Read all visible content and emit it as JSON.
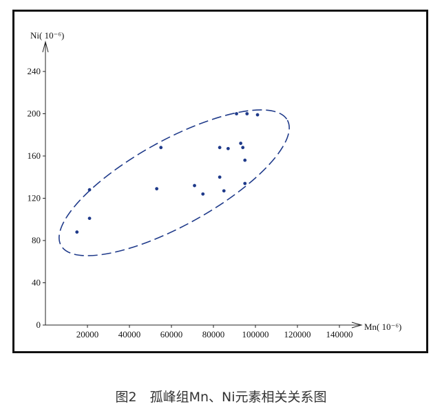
{
  "caption": "图2　孤峰组Mn、Ni元素相关关系图",
  "chart_data": {
    "type": "scatter",
    "title": "",
    "xlabel": "Mn( 10⁻⁶)",
    "ylabel": "Ni( 10⁻⁶)",
    "xlim": [
      0,
      150000
    ],
    "ylim": [
      0,
      260
    ],
    "x_ticks": [
      20000,
      40000,
      60000,
      80000,
      100000,
      120000,
      140000
    ],
    "y_ticks": [
      0,
      40,
      80,
      120,
      160,
      200,
      240
    ],
    "grid": false,
    "point_color": "#1f3a8a",
    "ellipse_color": "#1f3a8a",
    "points": [
      {
        "x": 15000,
        "y": 88
      },
      {
        "x": 21000,
        "y": 101
      },
      {
        "x": 21000,
        "y": 128
      },
      {
        "x": 53000,
        "y": 129
      },
      {
        "x": 55000,
        "y": 168
      },
      {
        "x": 71000,
        "y": 132
      },
      {
        "x": 75000,
        "y": 124
      },
      {
        "x": 83000,
        "y": 140
      },
      {
        "x": 83000,
        "y": 168
      },
      {
        "x": 85000,
        "y": 127
      },
      {
        "x": 87000,
        "y": 167
      },
      {
        "x": 91000,
        "y": 200
      },
      {
        "x": 93000,
        "y": 172
      },
      {
        "x": 94000,
        "y": 168
      },
      {
        "x": 95000,
        "y": 156
      },
      {
        "x": 95000,
        "y": 134
      },
      {
        "x": 96000,
        "y": 200
      },
      {
        "x": 101000,
        "y": 199
      }
    ]
  }
}
